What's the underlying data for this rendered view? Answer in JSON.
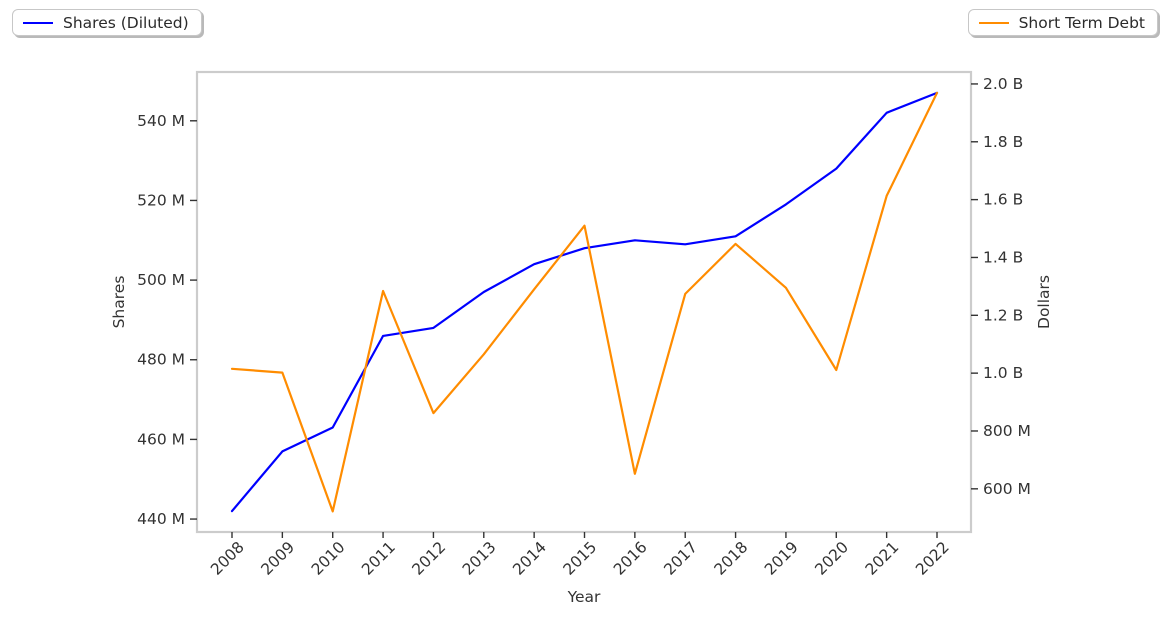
{
  "chart_data": {
    "type": "line",
    "title": "",
    "xlabel": "Year",
    "ylabel_left": "Shares",
    "ylabel_right": "Dollars",
    "grid": false,
    "categories": [
      "2008",
      "2009",
      "2010",
      "2011",
      "2012",
      "2013",
      "2014",
      "2015",
      "2016",
      "2017",
      "2018",
      "2019",
      "2020",
      "2021",
      "2022"
    ],
    "series": [
      {
        "name": "Shares (Diluted)",
        "axis": "left",
        "color": "#0000ff",
        "legend_position": "upper left",
        "units": "millions of shares",
        "values_millions": [
          442,
          457,
          463,
          486,
          488,
          497,
          504,
          508,
          510,
          509,
          511,
          519,
          528,
          542,
          547
        ]
      },
      {
        "name": "Short Term Debt",
        "axis": "right",
        "color": "#ff8c00",
        "legend_position": "upper right",
        "units": "millions of dollars",
        "values_millions": [
          1015,
          1002,
          522,
          1284,
          862,
          1065,
          1290,
          1510,
          652,
          1274,
          1447,
          1295,
          1011,
          1613,
          1969
        ]
      }
    ],
    "left_axis": {
      "tick_labels": [
        "440 M",
        "460 M",
        "480 M",
        "500 M",
        "520 M",
        "540 M"
      ],
      "tick_values": [
        440,
        460,
        480,
        500,
        520,
        540
      ],
      "range_millions": [
        436.75,
        552.25
      ]
    },
    "right_axis": {
      "tick_labels": [
        "600 M",
        "800 M",
        "1.0 B",
        "1.2 B",
        "1.4 B",
        "1.6 B",
        "1.8 B",
        "2.0 B"
      ],
      "tick_values": [
        600,
        800,
        1000,
        1200,
        1400,
        1600,
        1800,
        2000
      ],
      "range_millions": [
        450.7,
        2041.3
      ]
    },
    "text_color": "#333333",
    "spine_color": "#cccccc"
  }
}
